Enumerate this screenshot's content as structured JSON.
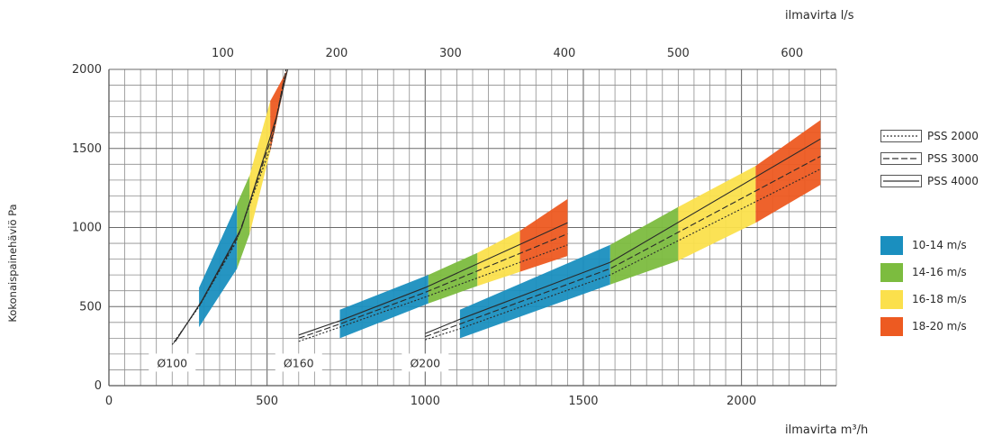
{
  "chart_data": {
    "type": "line",
    "xlabel_bottom": "ilmavirta m³/h",
    "xlabel_top": "ilmavirta l/s",
    "ylabel": "Kokonaispainehäviö Pa",
    "x_ticks_bottom": [
      "0",
      "500",
      "1000",
      "1500",
      "2000"
    ],
    "x_ticks_top": [
      "100",
      "200",
      "300",
      "400",
      "500",
      "600"
    ],
    "y_ticks": [
      "0",
      "500",
      "1000",
      "1500",
      "2000"
    ],
    "xlim": [
      0,
      2300
    ],
    "ylim": [
      0,
      2000
    ],
    "grid": true,
    "line_styles": [
      {
        "name": "PSS 2000",
        "style": "dotted"
      },
      {
        "name": "PSS 3000",
        "style": "dashed"
      },
      {
        "name": "PSS 4000",
        "style": "solid"
      }
    ],
    "velocity_bands": [
      {
        "label": "10-14 m/s",
        "color": "#1a8fbf"
      },
      {
        "label": "14-16 m/s",
        "color": "#7cbc3f"
      },
      {
        "label": "16-18 m/s",
        "color": "#fbe04c"
      },
      {
        "label": "18-20 m/s",
        "color": "#ed5a21"
      }
    ],
    "ducts": [
      {
        "label": "Ø100",
        "label_pos": [
          200,
          140
        ],
        "lead_points": [
          [
            200,
            260
          ],
          [
            290,
            520
          ]
        ],
        "segments": [
          {
            "band": 0,
            "x0": 285,
            "x1": 405,
            "lower": [
              370,
              740
            ],
            "upper": [
              620,
              1150
            ]
          },
          {
            "band": 1,
            "x0": 405,
            "x1": 445,
            "lower": [
              740,
              960
            ],
            "upper": [
              1150,
              1330
            ]
          },
          {
            "band": 2,
            "x0": 445,
            "x1": 510,
            "lower": [
              960,
              1480
            ],
            "upper": [
              1330,
              1800
            ]
          },
          {
            "band": 3,
            "x0": 510,
            "x1": 565,
            "lower": [
              1480,
              2000
            ],
            "upper": [
              1800,
              2000
            ]
          }
        ],
        "lines": [
          {
            "x": [
              200,
              285,
              400,
              510,
              560
            ],
            "y": [
              260,
              500,
              900,
              1500,
              2000
            ],
            "style": "dotted"
          },
          {
            "x": [
              205,
              290,
              410,
              520,
              560
            ],
            "y": [
              270,
              520,
              950,
              1600,
              2000
            ],
            "style": "dashed"
          },
          {
            "x": [
              210,
              295,
              420,
              530,
              565
            ],
            "y": [
              280,
              540,
              1000,
              1700,
              2000
            ],
            "style": "solid"
          }
        ]
      },
      {
        "label": "Ø160",
        "label_pos": [
          600,
          140
        ],
        "lead_points": [
          [
            600,
            300
          ],
          [
            730,
            390
          ]
        ],
        "segments": [
          {
            "band": 0,
            "x0": 730,
            "x1": 1010,
            "lower": [
              300,
              520
            ],
            "upper": [
              480,
              700
            ]
          },
          {
            "band": 1,
            "x0": 1010,
            "x1": 1165,
            "lower": [
              520,
              630
            ],
            "upper": [
              700,
              840
            ]
          },
          {
            "band": 2,
            "x0": 1165,
            "x1": 1300,
            "lower": [
              630,
              720
            ],
            "upper": [
              840,
              980
            ]
          },
          {
            "band": 3,
            "x0": 1300,
            "x1": 1450,
            "lower": [
              720,
              820
            ],
            "upper": [
              980,
              1180
            ]
          }
        ],
        "lines": [
          {
            "x": [
              600,
              730,
              1000,
              1450
            ],
            "y": [
              280,
              370,
              560,
              890
            ],
            "style": "dotted"
          },
          {
            "x": [
              600,
              730,
              1000,
              1450
            ],
            "y": [
              300,
              390,
              590,
              960
            ],
            "style": "dashed"
          },
          {
            "x": [
              600,
              730,
              1000,
              1450
            ],
            "y": [
              320,
              410,
              620,
              1030
            ],
            "style": "solid"
          }
        ]
      },
      {
        "label": "Ø200",
        "label_pos": [
          1000,
          140
        ],
        "lead_points": [
          [
            1000,
            300
          ],
          [
            1110,
            390
          ]
        ],
        "segments": [
          {
            "band": 0,
            "x0": 1110,
            "x1": 1585,
            "lower": [
              300,
              640
            ],
            "upper": [
              480,
              890
            ]
          },
          {
            "band": 1,
            "x0": 1585,
            "x1": 1800,
            "lower": [
              640,
              790
            ],
            "upper": [
              890,
              1130
            ]
          },
          {
            "band": 2,
            "x0": 1800,
            "x1": 2045,
            "lower": [
              790,
              1030
            ],
            "upper": [
              1130,
              1390
            ]
          },
          {
            "band": 3,
            "x0": 2045,
            "x1": 2250,
            "lower": [
              1030,
              1270
            ],
            "upper": [
              1390,
              1680
            ]
          }
        ],
        "lines": [
          {
            "x": [
              1000,
              1110,
              1585,
              2250
            ],
            "y": [
              290,
              360,
              700,
              1370
            ],
            "style": "dotted"
          },
          {
            "x": [
              1000,
              1110,
              1585,
              2250
            ],
            "y": [
              310,
              390,
              740,
              1450
            ],
            "style": "dashed"
          },
          {
            "x": [
              1000,
              1110,
              1585,
              2250
            ],
            "y": [
              330,
              420,
              780,
              1560
            ],
            "style": "solid"
          }
        ]
      }
    ]
  }
}
